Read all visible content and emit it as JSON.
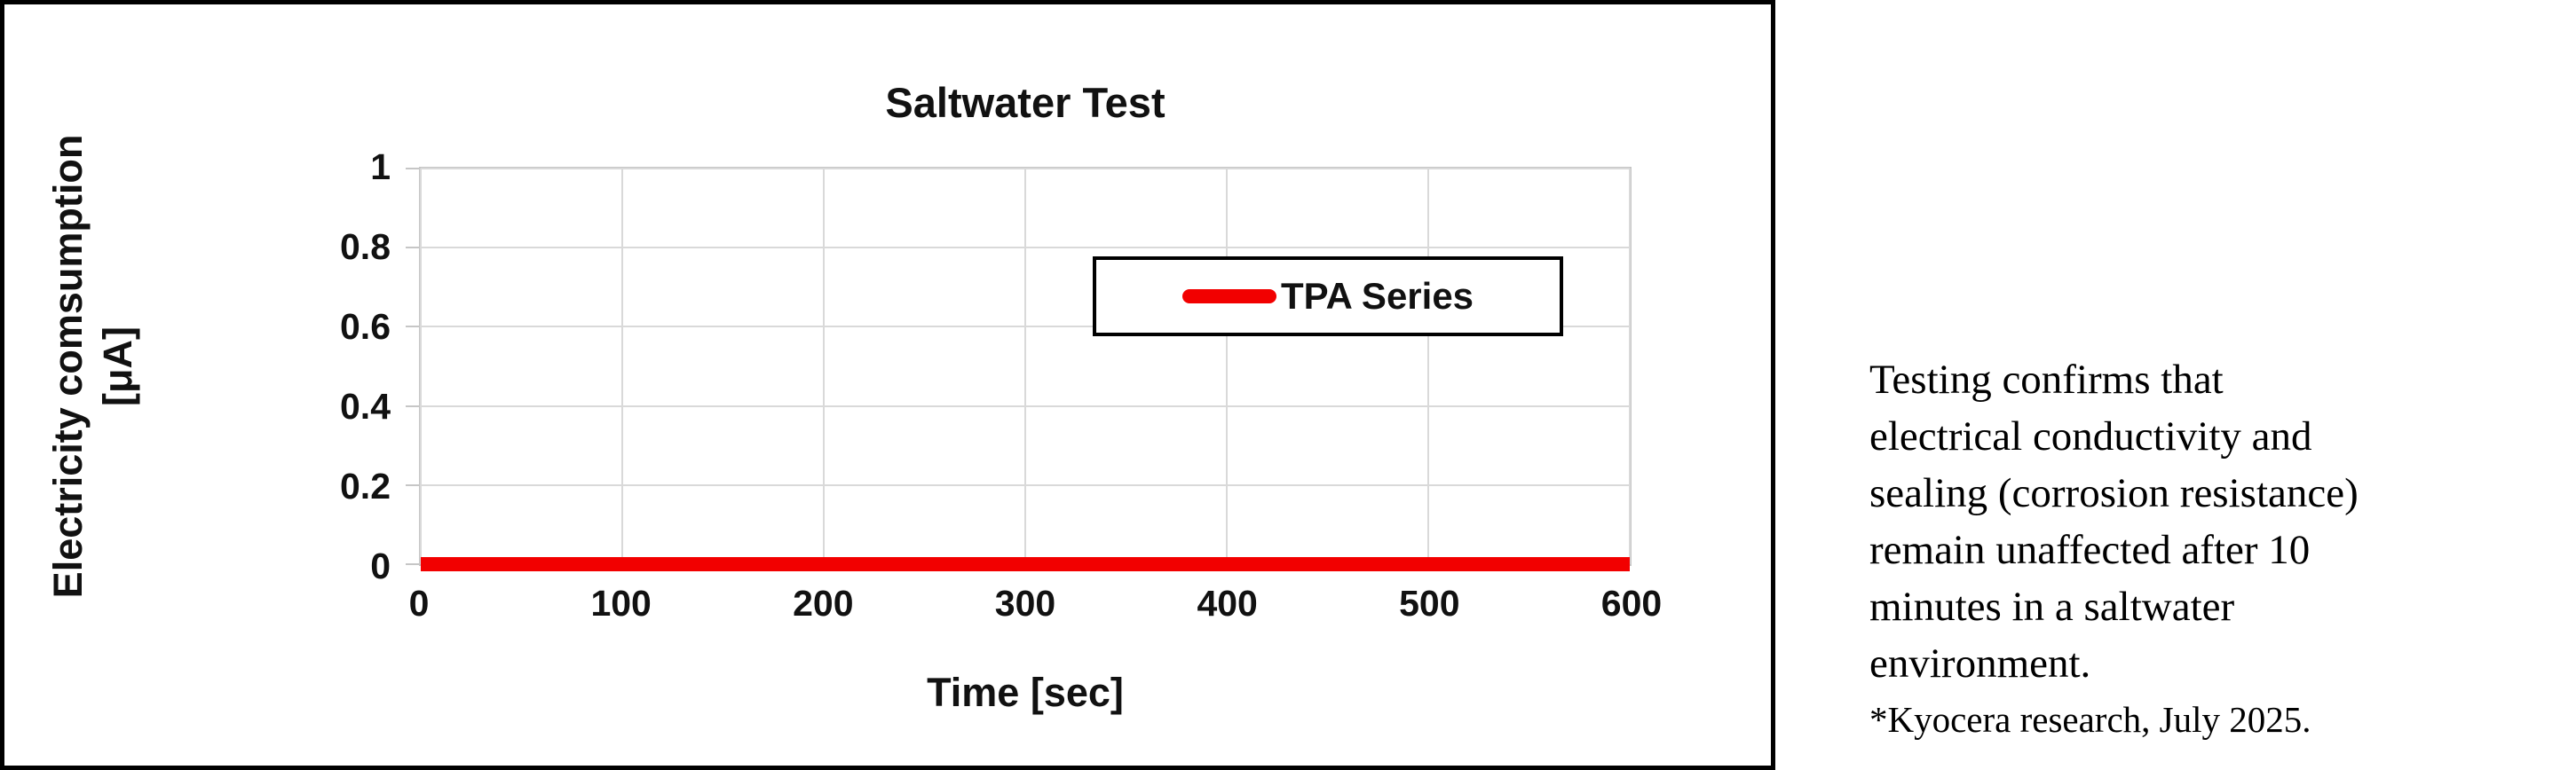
{
  "chart": {
    "title": "Saltwater Test",
    "x_axis_title": "Time [sec]",
    "y_axis_title_line1": "Electricity comsumption",
    "y_axis_title_line2": "[μA]",
    "legend_label": "TPA Series"
  },
  "chart_data": {
    "type": "line",
    "title": "Saltwater Test",
    "xlabel": "Time [sec]",
    "ylabel": "Electricity comsumption [μA]",
    "x": [
      0,
      100,
      200,
      300,
      400,
      500,
      600
    ],
    "series": [
      {
        "name": "TPA Series",
        "color": "#f20000",
        "values": [
          0,
          0,
          0,
          0,
          0,
          0,
          0
        ]
      }
    ],
    "xlim": [
      0,
      600
    ],
    "ylim": [
      0,
      1
    ],
    "xticks": [
      0,
      100,
      200,
      300,
      400,
      500,
      600
    ],
    "yticks": [
      0,
      0.2,
      0.4,
      0.6,
      0.8,
      1
    ],
    "grid": true,
    "legend_position": "inside-upper-center",
    "annotations": []
  },
  "note": {
    "lines": [
      "Testing confirms that",
      "electrical conductivity and",
      "sealing (corrosion resistance)",
      "remain unaffected after 10",
      "minutes in a saltwater",
      "environment."
    ],
    "footnote": "*Kyocera research, July 2025."
  },
  "colors": {
    "series_red": "#f20000",
    "gridline": "#d9d9d9",
    "axis": "#c6c6c6",
    "chart_border": "#000000",
    "text": "#111111"
  }
}
